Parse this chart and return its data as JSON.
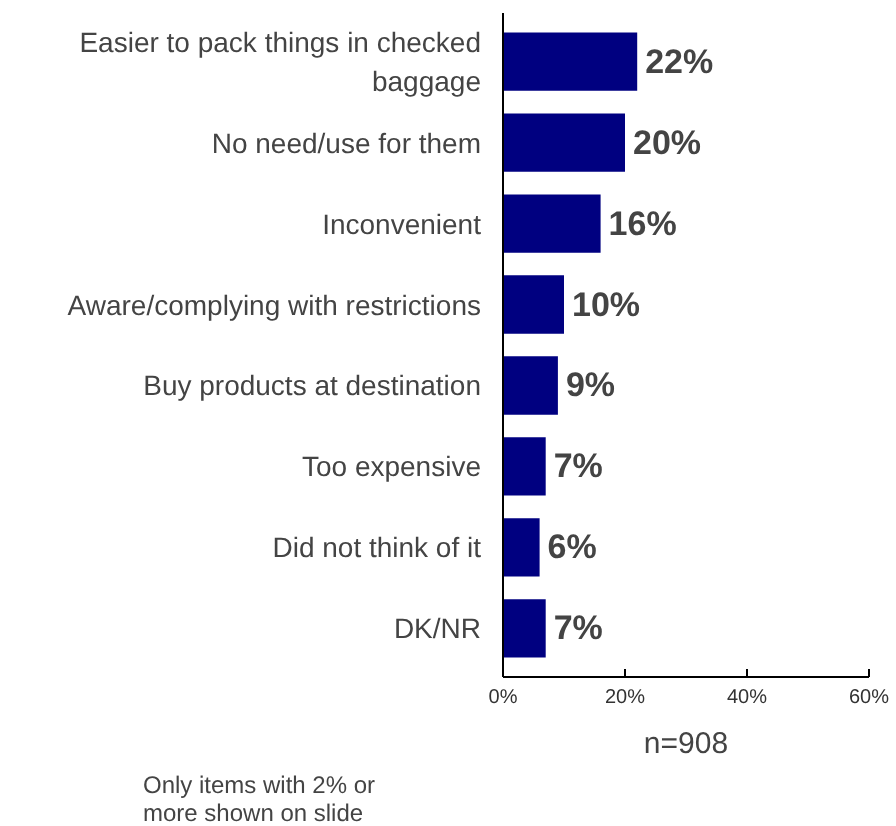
{
  "chart_data": {
    "type": "bar",
    "orientation": "horizontal",
    "categories": [
      "Easier to pack things in checked baggage",
      "No need/use for them",
      "Inconvenient",
      "Aware/complying with restrictions",
      "Buy products at destination",
      "Too expensive",
      "Did not think of it",
      "DK/NR"
    ],
    "values": [
      22,
      20,
      16,
      10,
      9,
      7,
      6,
      7
    ],
    "value_labels": [
      "22%",
      "20%",
      "16%",
      "10%",
      "9%",
      "7%",
      "6%",
      "7%"
    ],
    "color": "#000080",
    "xlim": [
      0,
      60
    ],
    "xticks": [
      {
        "value": 0,
        "label": "0%"
      },
      {
        "value": 20,
        "label": "20%"
      },
      {
        "value": 40,
        "label": "40%"
      },
      {
        "value": 60,
        "label": "60%"
      }
    ],
    "xlabel": "n=908",
    "annotations": [
      "Only items with 2% or more shown on slide"
    ],
    "grid": false
  }
}
